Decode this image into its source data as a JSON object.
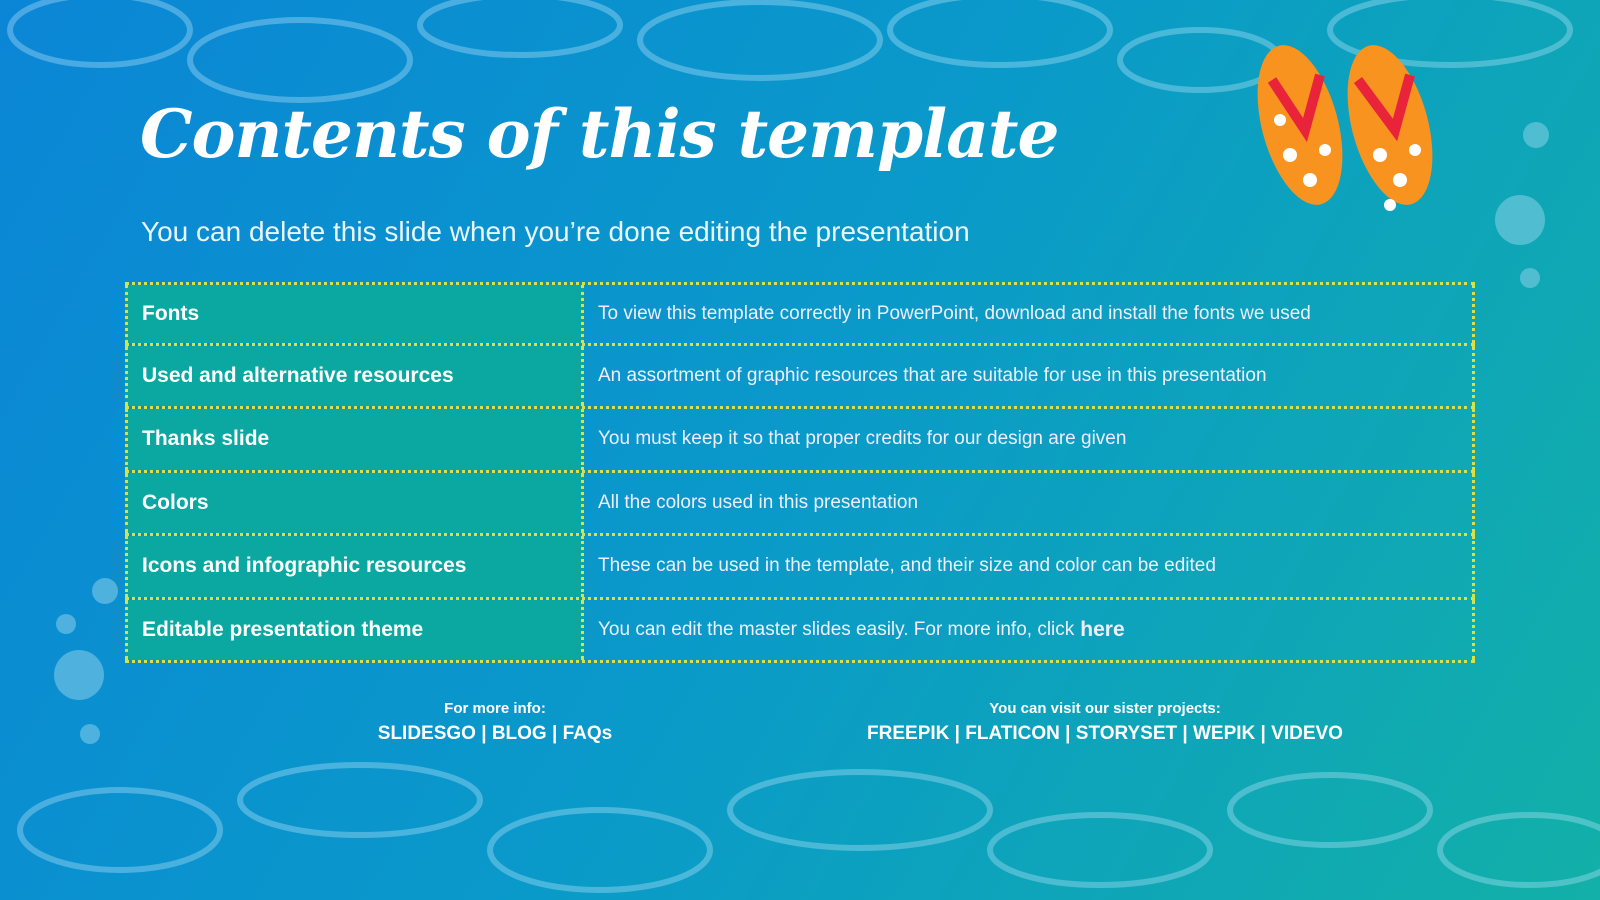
{
  "title": "Contents of this template",
  "subtitle": "You can delete this slide when you’re done editing the presentation",
  "rows": [
    {
      "label": "Fonts",
      "desc": "To view this template correctly in PowerPoint, download and install the fonts we used"
    },
    {
      "label": "Used and alternative resources",
      "desc": "An assortment of graphic resources that are suitable for use in this presentation"
    },
    {
      "label": "Thanks slide",
      "desc": "You must keep it so that proper credits for our design are given"
    },
    {
      "label": "Colors",
      "desc": "All the colors used in this presentation"
    },
    {
      "label": "Icons and infographic resources",
      "desc": "These can be used in the template, and their size and color can be edited"
    },
    {
      "label": "Editable presentation theme",
      "desc": "You can edit the master slides easily. For more info, click",
      "link": "here"
    }
  ],
  "footer_left": {
    "heading": "For more info:",
    "links": [
      "SLIDESGO",
      "BLOG",
      "FAQs"
    ]
  },
  "footer_right": {
    "heading": "You can visit our sister projects:",
    "links": [
      "FREEPIK",
      "FLATICON",
      "STORYSET",
      "WEPIK",
      "VIDEVO"
    ]
  },
  "colors": {
    "accent": "#d8e04a",
    "teal": "#0aa8a0",
    "flipflop": "#f7931e"
  }
}
